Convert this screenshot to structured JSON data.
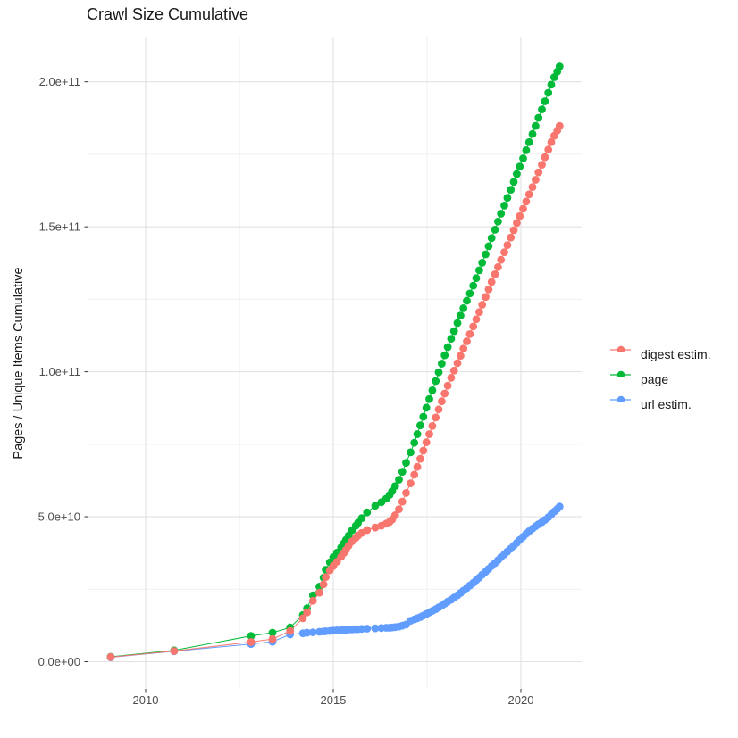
{
  "title": "Crawl Size Cumulative",
  "colors": {
    "background": "#ffffff",
    "grid_major": "#e2e2e2",
    "grid_minor": "#efefef",
    "tick_mark": "#333333",
    "tick_label": "#4d4d4d",
    "text": "#1a1a1a",
    "series_digest": "#F8766D",
    "series_page": "#00BA38",
    "series_url": "#619CFF"
  },
  "chart_data": {
    "type": "scatter",
    "style": "points-with-line",
    "title": "Crawl Size Cumulative",
    "xlabel": "",
    "ylabel": "Pages / Unique Items Cumulative",
    "legend_position": "right",
    "grid": true,
    "xlim": [
      2008.5,
      2021.7
    ],
    "ylim": [
      0,
      215500000000.0
    ],
    "x_major_ticks": [
      2010,
      2015,
      2020
    ],
    "x_tick_labels": [
      "2010",
      "2015",
      "2020"
    ],
    "x_minor_gridlines": [
      2012.5,
      2017.5
    ],
    "y_major_ticks": [
      0,
      50000000000.0,
      100000000000.0,
      150000000000.0,
      200000000000.0
    ],
    "y_tick_labels": [
      "0.0e+00",
      "5.0e+10",
      "1.0e+11",
      "1.5e+11",
      "2.0e+11"
    ],
    "y_minor_gridlines": [
      25000000000.0,
      75000000000.0,
      125000000000.0,
      175000000000.0
    ],
    "x_unit": "year",
    "value_scale": 1000000000.0,
    "value_unit": "pages / unique items (cumulative)",
    "series": [
      {
        "name": "digest estim.",
        "color": "#F8766D",
        "points": [
          [
            2009.07,
            1.6
          ],
          [
            2010.76,
            3.7
          ],
          [
            2012.81,
            6.8
          ],
          [
            2013.38,
            7.8
          ],
          [
            2013.85,
            10.6
          ],
          [
            2014.19,
            15.0
          ],
          [
            2014.3,
            17.0
          ],
          [
            2014.46,
            21.0
          ],
          [
            2014.63,
            23.8
          ],
          [
            2014.74,
            26.7
          ],
          [
            2014.8,
            29.2
          ],
          [
            2014.91,
            31.5
          ],
          [
            2015.0,
            33.0
          ],
          [
            2015.1,
            34.5
          ],
          [
            2015.21,
            36.2
          ],
          [
            2015.28,
            37.5
          ],
          [
            2015.34,
            38.6
          ],
          [
            2015.41,
            40.0
          ],
          [
            2015.5,
            41.5
          ],
          [
            2015.6,
            42.7
          ],
          [
            2015.66,
            43.5
          ],
          [
            2015.76,
            44.4
          ],
          [
            2015.9,
            45.4
          ],
          [
            2016.12,
            46.3
          ],
          [
            2016.28,
            46.9
          ],
          [
            2016.41,
            47.6
          ],
          [
            2016.5,
            48.2
          ],
          [
            2016.57,
            49.0
          ],
          [
            2016.65,
            50.5
          ],
          [
            2016.75,
            52.6
          ],
          [
            2016.84,
            55.2
          ],
          [
            2016.94,
            58.2
          ],
          [
            2017.06,
            61.5
          ],
          [
            2017.16,
            64.5
          ],
          [
            2017.24,
            67.2
          ],
          [
            2017.32,
            70.0
          ],
          [
            2017.4,
            72.8
          ],
          [
            2017.48,
            75.7
          ],
          [
            2017.56,
            78.5
          ],
          [
            2017.64,
            81.3
          ],
          [
            2017.73,
            84.2
          ],
          [
            2017.81,
            87.0
          ],
          [
            2017.89,
            89.8
          ],
          [
            2017.97,
            92.5
          ],
          [
            2018.05,
            95.2
          ],
          [
            2018.14,
            97.9
          ],
          [
            2018.22,
            100.4
          ],
          [
            2018.31,
            103.0
          ],
          [
            2018.39,
            105.5
          ],
          [
            2018.47,
            108.0
          ],
          [
            2018.56,
            110.5
          ],
          [
            2018.64,
            113.0
          ],
          [
            2018.73,
            115.6
          ],
          [
            2018.81,
            118.1
          ],
          [
            2018.89,
            120.6
          ],
          [
            2018.97,
            123.1
          ],
          [
            2019.06,
            125.8
          ],
          [
            2019.14,
            128.4
          ],
          [
            2019.22,
            131.0
          ],
          [
            2019.31,
            133.6
          ],
          [
            2019.39,
            136.1
          ],
          [
            2019.47,
            138.6
          ],
          [
            2019.56,
            141.2
          ],
          [
            2019.64,
            143.7
          ],
          [
            2019.73,
            146.3
          ],
          [
            2019.81,
            148.8
          ],
          [
            2019.89,
            151.3
          ],
          [
            2019.97,
            153.7
          ],
          [
            2020.06,
            156.2
          ],
          [
            2020.14,
            158.7
          ],
          [
            2020.22,
            161.2
          ],
          [
            2020.31,
            163.7
          ],
          [
            2020.39,
            166.2
          ],
          [
            2020.47,
            168.8
          ],
          [
            2020.56,
            171.4
          ],
          [
            2020.64,
            174.0
          ],
          [
            2020.73,
            176.6
          ],
          [
            2020.81,
            179.2
          ],
          [
            2020.89,
            181.4
          ],
          [
            2020.97,
            183.2
          ],
          [
            2021.03,
            184.8
          ]
        ]
      },
      {
        "name": "page",
        "color": "#00BA38",
        "points": [
          [
            2009.07,
            1.7
          ],
          [
            2010.76,
            3.9
          ],
          [
            2012.81,
            8.9
          ],
          [
            2013.38,
            10.0
          ],
          [
            2013.85,
            11.8
          ],
          [
            2014.19,
            16.1
          ],
          [
            2014.3,
            18.4
          ],
          [
            2014.46,
            22.9
          ],
          [
            2014.63,
            25.9
          ],
          [
            2014.74,
            29.0
          ],
          [
            2014.8,
            31.7
          ],
          [
            2014.91,
            34.3
          ],
          [
            2015.0,
            36.0
          ],
          [
            2015.1,
            37.6
          ],
          [
            2015.21,
            39.4
          ],
          [
            2015.28,
            40.8
          ],
          [
            2015.34,
            42.0
          ],
          [
            2015.41,
            43.5
          ],
          [
            2015.5,
            45.3
          ],
          [
            2015.6,
            46.9
          ],
          [
            2015.66,
            47.9
          ],
          [
            2015.76,
            49.5
          ],
          [
            2015.9,
            51.5
          ],
          [
            2016.12,
            53.8
          ],
          [
            2016.28,
            55.0
          ],
          [
            2016.41,
            56.2
          ],
          [
            2016.5,
            57.5
          ],
          [
            2016.57,
            58.8
          ],
          [
            2016.65,
            60.6
          ],
          [
            2016.75,
            62.8
          ],
          [
            2016.84,
            65.5
          ],
          [
            2016.94,
            68.6
          ],
          [
            2017.06,
            72.2
          ],
          [
            2017.16,
            75.5
          ],
          [
            2017.24,
            78.5
          ],
          [
            2017.32,
            81.5
          ],
          [
            2017.4,
            84.5
          ],
          [
            2017.48,
            87.6
          ],
          [
            2017.56,
            90.6
          ],
          [
            2017.64,
            93.6
          ],
          [
            2017.73,
            96.8
          ],
          [
            2017.81,
            99.8
          ],
          [
            2017.89,
            102.8
          ],
          [
            2017.97,
            105.7
          ],
          [
            2018.05,
            108.5
          ],
          [
            2018.14,
            111.4
          ],
          [
            2018.22,
            114.0
          ],
          [
            2018.31,
            116.8
          ],
          [
            2018.39,
            119.4
          ],
          [
            2018.47,
            121.9
          ],
          [
            2018.56,
            124.5
          ],
          [
            2018.64,
            127.0
          ],
          [
            2018.73,
            129.7
          ],
          [
            2018.81,
            132.3
          ],
          [
            2018.89,
            135.0
          ],
          [
            2018.97,
            137.6
          ],
          [
            2019.06,
            140.5
          ],
          [
            2019.14,
            143.3
          ],
          [
            2019.22,
            146.1
          ],
          [
            2019.31,
            149.0
          ],
          [
            2019.39,
            151.8
          ],
          [
            2019.47,
            154.5
          ],
          [
            2019.56,
            157.3
          ],
          [
            2019.64,
            160.0
          ],
          [
            2019.73,
            162.8
          ],
          [
            2019.81,
            165.5
          ],
          [
            2019.89,
            168.2
          ],
          [
            2019.97,
            170.8
          ],
          [
            2020.06,
            173.6
          ],
          [
            2020.14,
            176.4
          ],
          [
            2020.22,
            179.2
          ],
          [
            2020.31,
            182.0
          ],
          [
            2020.39,
            184.8
          ],
          [
            2020.47,
            187.6
          ],
          [
            2020.56,
            190.5
          ],
          [
            2020.64,
            193.3
          ],
          [
            2020.73,
            196.2
          ],
          [
            2020.81,
            199.0
          ],
          [
            2020.89,
            201.6
          ],
          [
            2020.97,
            203.5
          ],
          [
            2021.03,
            205.3
          ]
        ]
      },
      {
        "name": "url estim.",
        "color": "#619CFF",
        "points": [
          [
            2009.07,
            1.5
          ],
          [
            2010.76,
            3.6
          ],
          [
            2012.81,
            6.1
          ],
          [
            2013.38,
            6.9
          ],
          [
            2013.85,
            9.4
          ],
          [
            2014.19,
            9.8
          ],
          [
            2014.3,
            10.0
          ],
          [
            2014.46,
            10.1
          ],
          [
            2014.63,
            10.3
          ],
          [
            2014.74,
            10.4
          ],
          [
            2014.8,
            10.5
          ],
          [
            2014.91,
            10.6
          ],
          [
            2015.0,
            10.7
          ],
          [
            2015.1,
            10.8
          ],
          [
            2015.21,
            10.9
          ],
          [
            2015.28,
            11.0
          ],
          [
            2015.34,
            11.0
          ],
          [
            2015.41,
            11.1
          ],
          [
            2015.5,
            11.1
          ],
          [
            2015.6,
            11.2
          ],
          [
            2015.66,
            11.2
          ],
          [
            2015.76,
            11.3
          ],
          [
            2015.9,
            11.4
          ],
          [
            2016.12,
            11.5
          ],
          [
            2016.28,
            11.6
          ],
          [
            2016.41,
            11.7
          ],
          [
            2016.5,
            11.7
          ],
          [
            2016.57,
            11.8
          ],
          [
            2016.65,
            11.9
          ],
          [
            2016.75,
            12.1
          ],
          [
            2016.84,
            12.4
          ],
          [
            2016.94,
            12.8
          ],
          [
            2017.06,
            14.1
          ],
          [
            2017.16,
            14.6
          ],
          [
            2017.24,
            15.0
          ],
          [
            2017.32,
            15.4
          ],
          [
            2017.4,
            15.9
          ],
          [
            2017.48,
            16.4
          ],
          [
            2017.56,
            17.0
          ],
          [
            2017.64,
            17.5
          ],
          [
            2017.73,
            18.1
          ],
          [
            2017.81,
            18.7
          ],
          [
            2017.89,
            19.3
          ],
          [
            2017.97,
            20.0
          ],
          [
            2018.05,
            20.7
          ],
          [
            2018.14,
            21.4
          ],
          [
            2018.22,
            22.1
          ],
          [
            2018.31,
            22.9
          ],
          [
            2018.39,
            23.7
          ],
          [
            2018.47,
            24.5
          ],
          [
            2018.56,
            25.4
          ],
          [
            2018.64,
            26.3
          ],
          [
            2018.73,
            27.2
          ],
          [
            2018.81,
            28.1
          ],
          [
            2018.89,
            29.0
          ],
          [
            2018.97,
            30.0
          ],
          [
            2019.06,
            31.0
          ],
          [
            2019.14,
            32.0
          ],
          [
            2019.22,
            33.0
          ],
          [
            2019.31,
            34.0
          ],
          [
            2019.39,
            35.0
          ],
          [
            2019.47,
            36.0
          ],
          [
            2019.56,
            37.0
          ],
          [
            2019.64,
            38.0
          ],
          [
            2019.73,
            39.0
          ],
          [
            2019.81,
            40.0
          ],
          [
            2019.89,
            41.0
          ],
          [
            2019.97,
            42.0
          ],
          [
            2020.06,
            43.1
          ],
          [
            2020.14,
            44.1
          ],
          [
            2020.22,
            45.0
          ],
          [
            2020.31,
            45.9
          ],
          [
            2020.39,
            46.7
          ],
          [
            2020.47,
            47.4
          ],
          [
            2020.56,
            48.1
          ],
          [
            2020.64,
            48.9
          ],
          [
            2020.73,
            49.8
          ],
          [
            2020.81,
            50.8
          ],
          [
            2020.89,
            51.8
          ],
          [
            2020.97,
            52.7
          ],
          [
            2021.03,
            53.5
          ]
        ]
      }
    ]
  }
}
